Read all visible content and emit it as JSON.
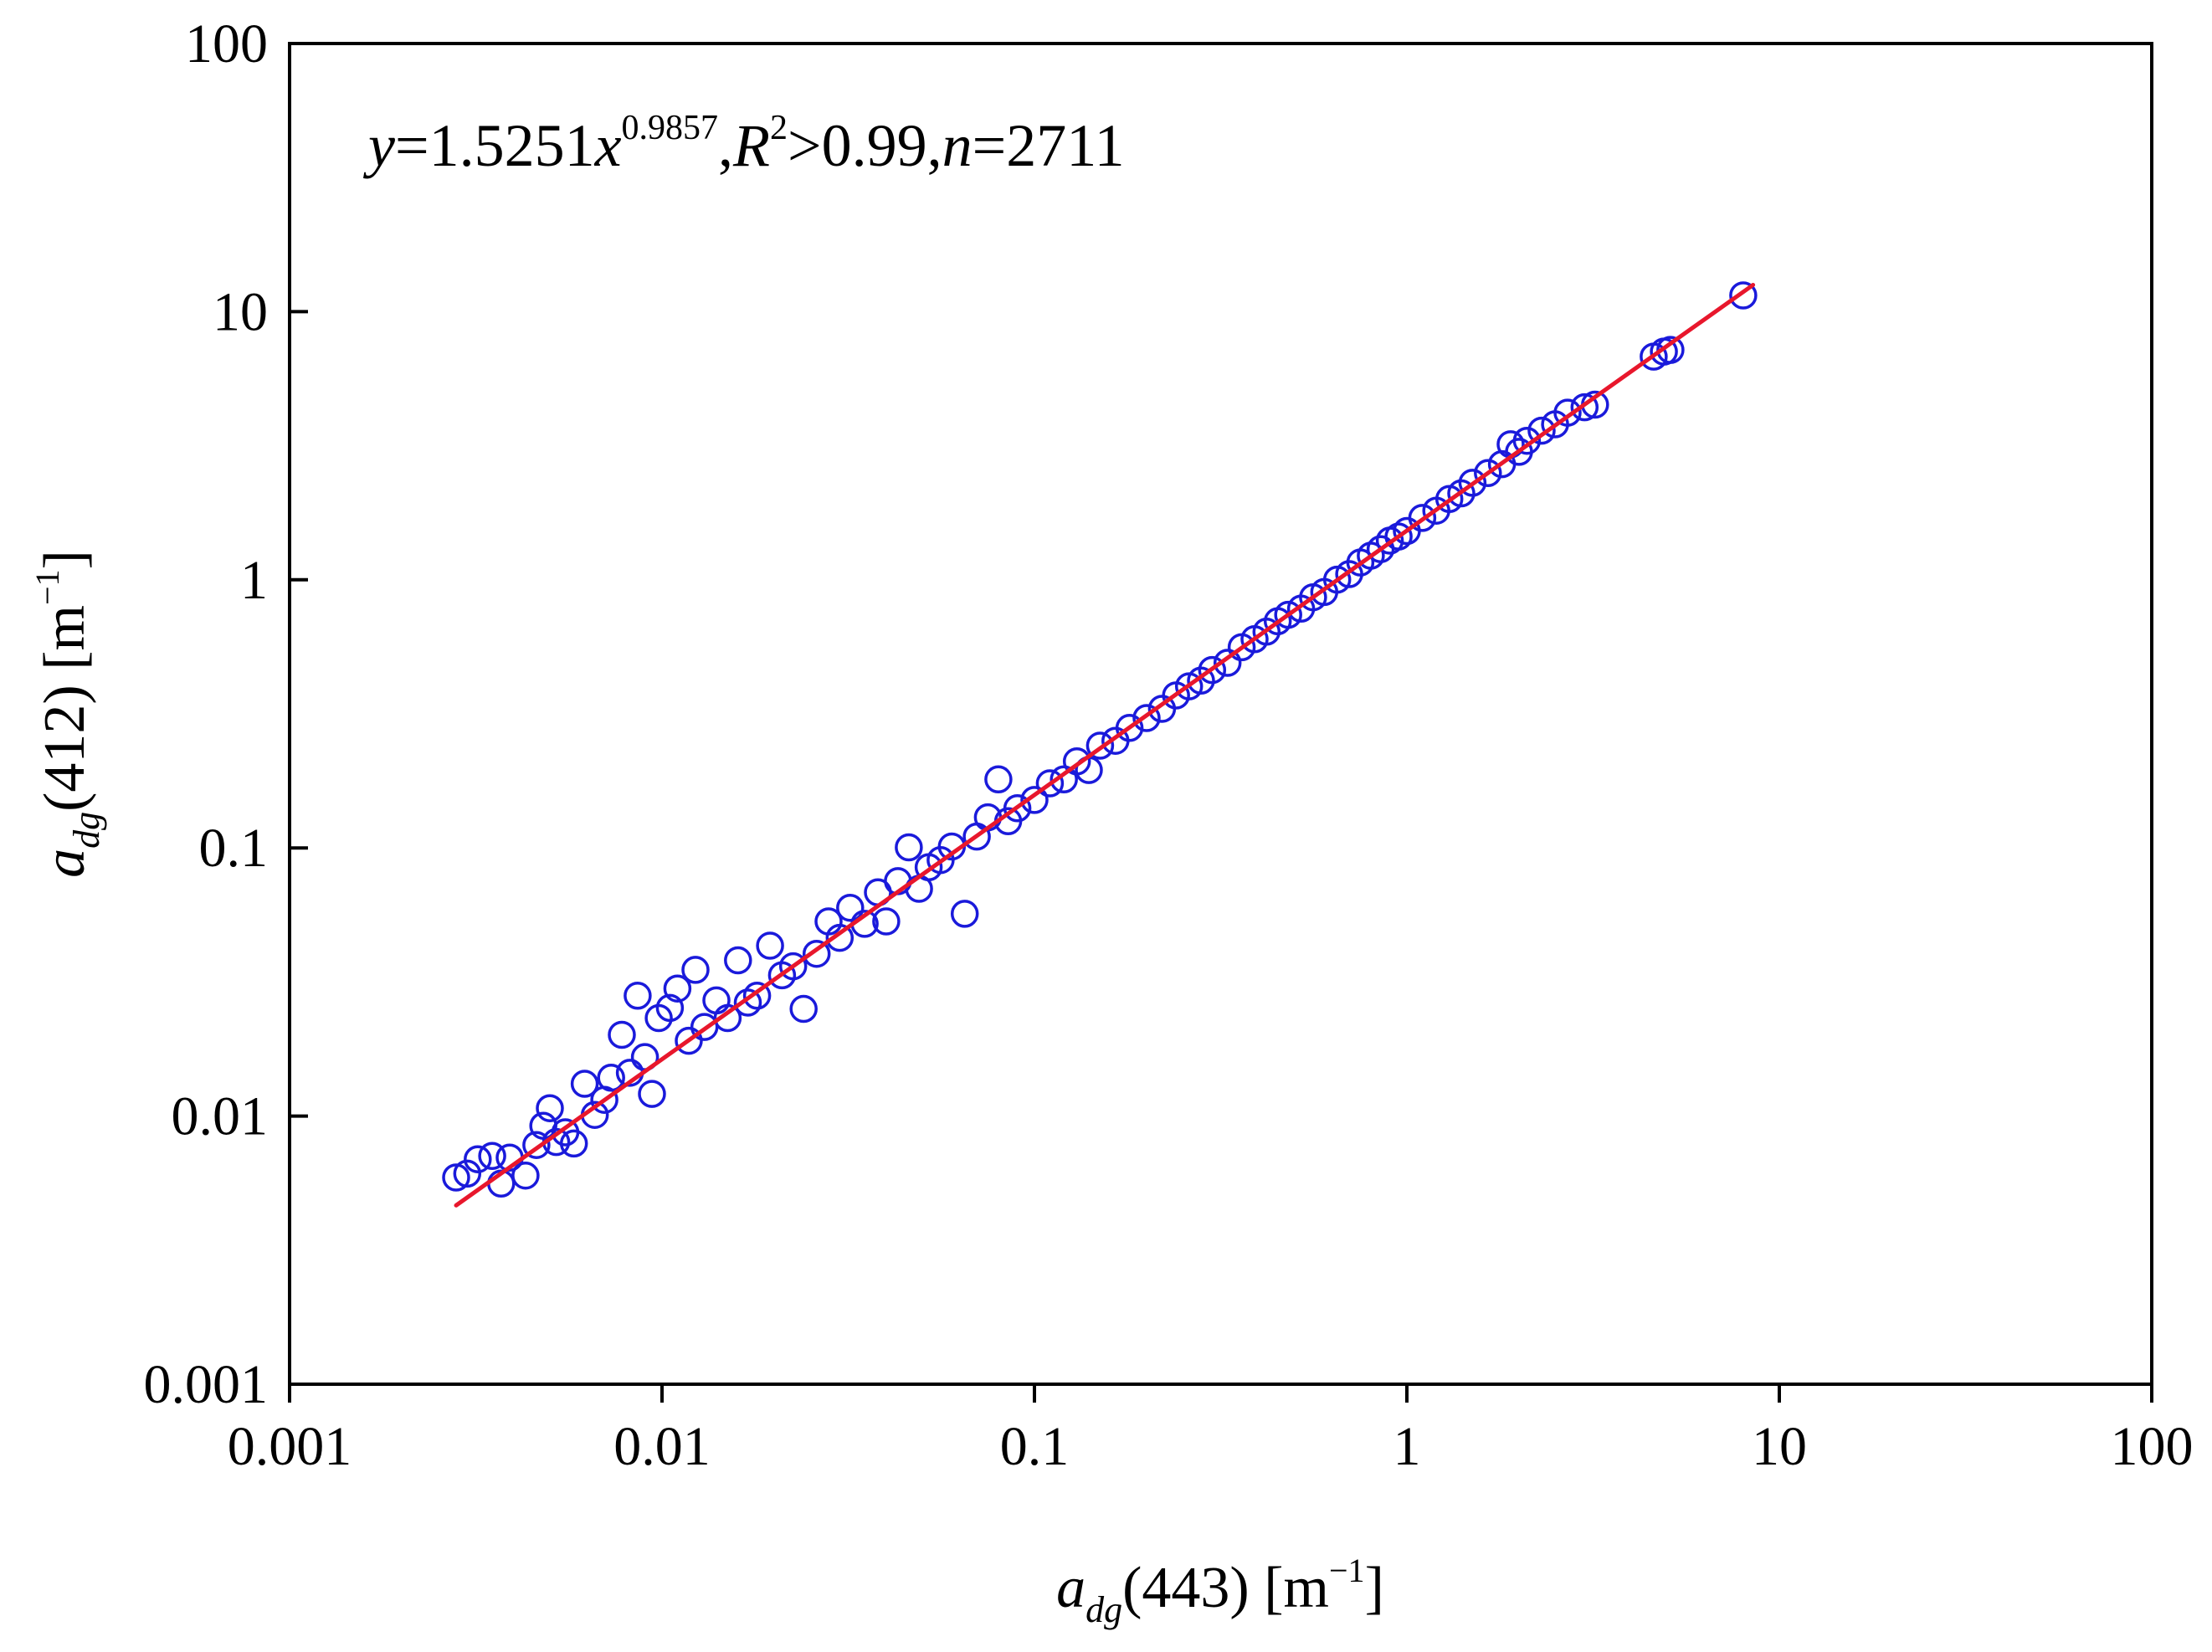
{
  "chart_data": {
    "type": "scatter",
    "x_scale": "log",
    "y_scale": "log",
    "xlim": [
      0.001,
      100
    ],
    "ylim": [
      0.001,
      100
    ],
    "x_ticks": [
      0.001,
      0.01,
      0.1,
      1,
      10,
      100
    ],
    "y_ticks": [
      0.001,
      0.01,
      0.1,
      1,
      10,
      100
    ],
    "x_tick_labels": [
      "0.001",
      "0.01",
      "0.1",
      "1",
      "10",
      "100"
    ],
    "y_tick_labels": [
      "0.001",
      "0.01",
      "0.1",
      "1",
      "10",
      "100"
    ],
    "xlabel": {
      "a": "a",
      "sub": "dg",
      "rest": "(443) [m",
      "sup": "−1",
      "close": "]"
    },
    "ylabel": {
      "a": "a",
      "sub": "dg",
      "rest": "(412) [m",
      "sup": "−1",
      "close": "]"
    },
    "annotation": {
      "y": "y",
      "eq_start": "=1.5251",
      "x": "x",
      "exponent": "0.9857",
      "comma1": ",",
      "R": "R",
      "R_sup": "2",
      "r2_part": ">0.99,",
      "n": "n",
      "n_part": "=2711"
    },
    "grid": false,
    "legend": "none",
    "series": [
      {
        "marker": "open-circle",
        "color": "#1a1adb",
        "points": [
          [
            0.0028,
            0.0059
          ],
          [
            0.003,
            0.0061
          ],
          [
            0.0032,
            0.0069
          ],
          [
            0.0035,
            0.0071
          ],
          [
            0.0037,
            0.0056
          ],
          [
            0.0039,
            0.007
          ],
          [
            0.0043,
            0.006
          ],
          [
            0.0046,
            0.0078
          ],
          [
            0.0048,
            0.0092
          ],
          [
            0.005,
            0.0107
          ],
          [
            0.0052,
            0.008
          ],
          [
            0.0055,
            0.0087
          ],
          [
            0.0058,
            0.0079
          ],
          [
            0.0062,
            0.0132
          ],
          [
            0.0066,
            0.0101
          ],
          [
            0.007,
            0.0115
          ],
          [
            0.0073,
            0.0139
          ],
          [
            0.0078,
            0.0201
          ],
          [
            0.0082,
            0.0145
          ],
          [
            0.0086,
            0.0281
          ],
          [
            0.009,
            0.0166
          ],
          [
            0.0094,
            0.0121
          ],
          [
            0.0098,
            0.0232
          ],
          [
            0.0105,
            0.0253
          ],
          [
            0.011,
            0.0299
          ],
          [
            0.0118,
            0.0191
          ],
          [
            0.0123,
            0.0351
          ],
          [
            0.013,
            0.0215
          ],
          [
            0.014,
            0.027
          ],
          [
            0.015,
            0.0232
          ],
          [
            0.016,
            0.0381
          ],
          [
            0.017,
            0.0265
          ],
          [
            0.018,
            0.0281
          ],
          [
            0.0195,
            0.0432
          ],
          [
            0.021,
            0.0335
          ],
          [
            0.0225,
            0.0362
          ],
          [
            0.024,
            0.0251
          ],
          [
            0.026,
            0.0403
          ],
          [
            0.028,
            0.0532
          ],
          [
            0.03,
            0.0462
          ],
          [
            0.032,
            0.0598
          ],
          [
            0.035,
            0.0521
          ],
          [
            0.038,
            0.0683
          ],
          [
            0.04,
            0.0532
          ],
          [
            0.043,
            0.0752
          ],
          [
            0.046,
            0.1005
          ],
          [
            0.049,
            0.0704
          ],
          [
            0.052,
            0.0847
          ],
          [
            0.056,
            0.0901
          ],
          [
            0.06,
            0.1012
          ],
          [
            0.065,
            0.0568
          ],
          [
            0.07,
            0.1103
          ],
          [
            0.075,
            0.1301
          ],
          [
            0.08,
            0.1802
          ],
          [
            0.085,
            0.1258
          ],
          [
            0.09,
            0.1406
          ],
          [
            0.1,
            0.151
          ],
          [
            0.11,
            0.1742
          ],
          [
            0.12,
            0.1801
          ],
          [
            0.13,
            0.2102
          ],
          [
            0.14,
            0.1953
          ],
          [
            0.15,
            0.2406
          ],
          [
            0.165,
            0.2509
          ],
          [
            0.18,
            0.2803
          ],
          [
            0.2,
            0.3051
          ],
          [
            0.22,
            0.3302
          ],
          [
            0.24,
            0.3704
          ],
          [
            0.26,
            0.4006
          ],
          [
            0.28,
            0.4207
          ],
          [
            0.3,
            0.4608
          ],
          [
            0.33,
            0.4903
          ],
          [
            0.36,
            0.5602
          ],
          [
            0.39,
            0.6004
          ],
          [
            0.42,
            0.6404
          ],
          [
            0.45,
            0.7005
          ],
          [
            0.48,
            0.7406
          ],
          [
            0.52,
            0.7806
          ],
          [
            0.56,
            0.8607
          ],
          [
            0.6,
            0.9006
          ],
          [
            0.65,
            1.0012
          ],
          [
            0.7,
            1.0504
          ],
          [
            0.75,
            1.1601
          ],
          [
            0.8,
            1.2302
          ],
          [
            0.85,
            1.3004
          ],
          [
            0.9,
            1.4002
          ],
          [
            0.95,
            1.4504
          ],
          [
            1.0,
            1.5208
          ],
          [
            1.1,
            1.7005
          ],
          [
            1.2,
            1.8106
          ],
          [
            1.3,
            2.0007
          ],
          [
            1.4,
            2.1006
          ],
          [
            1.5,
            2.3003
          ],
          [
            1.65,
            2.5002
          ],
          [
            1.8,
            2.7003
          ],
          [
            1.9,
            3.2004
          ],
          [
            2.0,
            3.0002
          ],
          [
            2.1,
            3.3001
          ],
          [
            2.3,
            3.6002
          ],
          [
            2.5,
            3.8003
          ],
          [
            2.7,
            4.2004
          ],
          [
            3.0,
            4.4002
          ],
          [
            3.2,
            4.5003
          ],
          [
            4.6,
            6.8004
          ],
          [
            4.9,
            7.1003
          ],
          [
            5.1,
            7.2002
          ],
          [
            8.0,
            11.5001
          ]
        ]
      },
      {
        "type": "line",
        "color": "#e8172c",
        "fit": {
          "a": 1.5251,
          "b": 0.9857
        },
        "x_range": [
          0.0028,
          8.5
        ]
      }
    ]
  }
}
